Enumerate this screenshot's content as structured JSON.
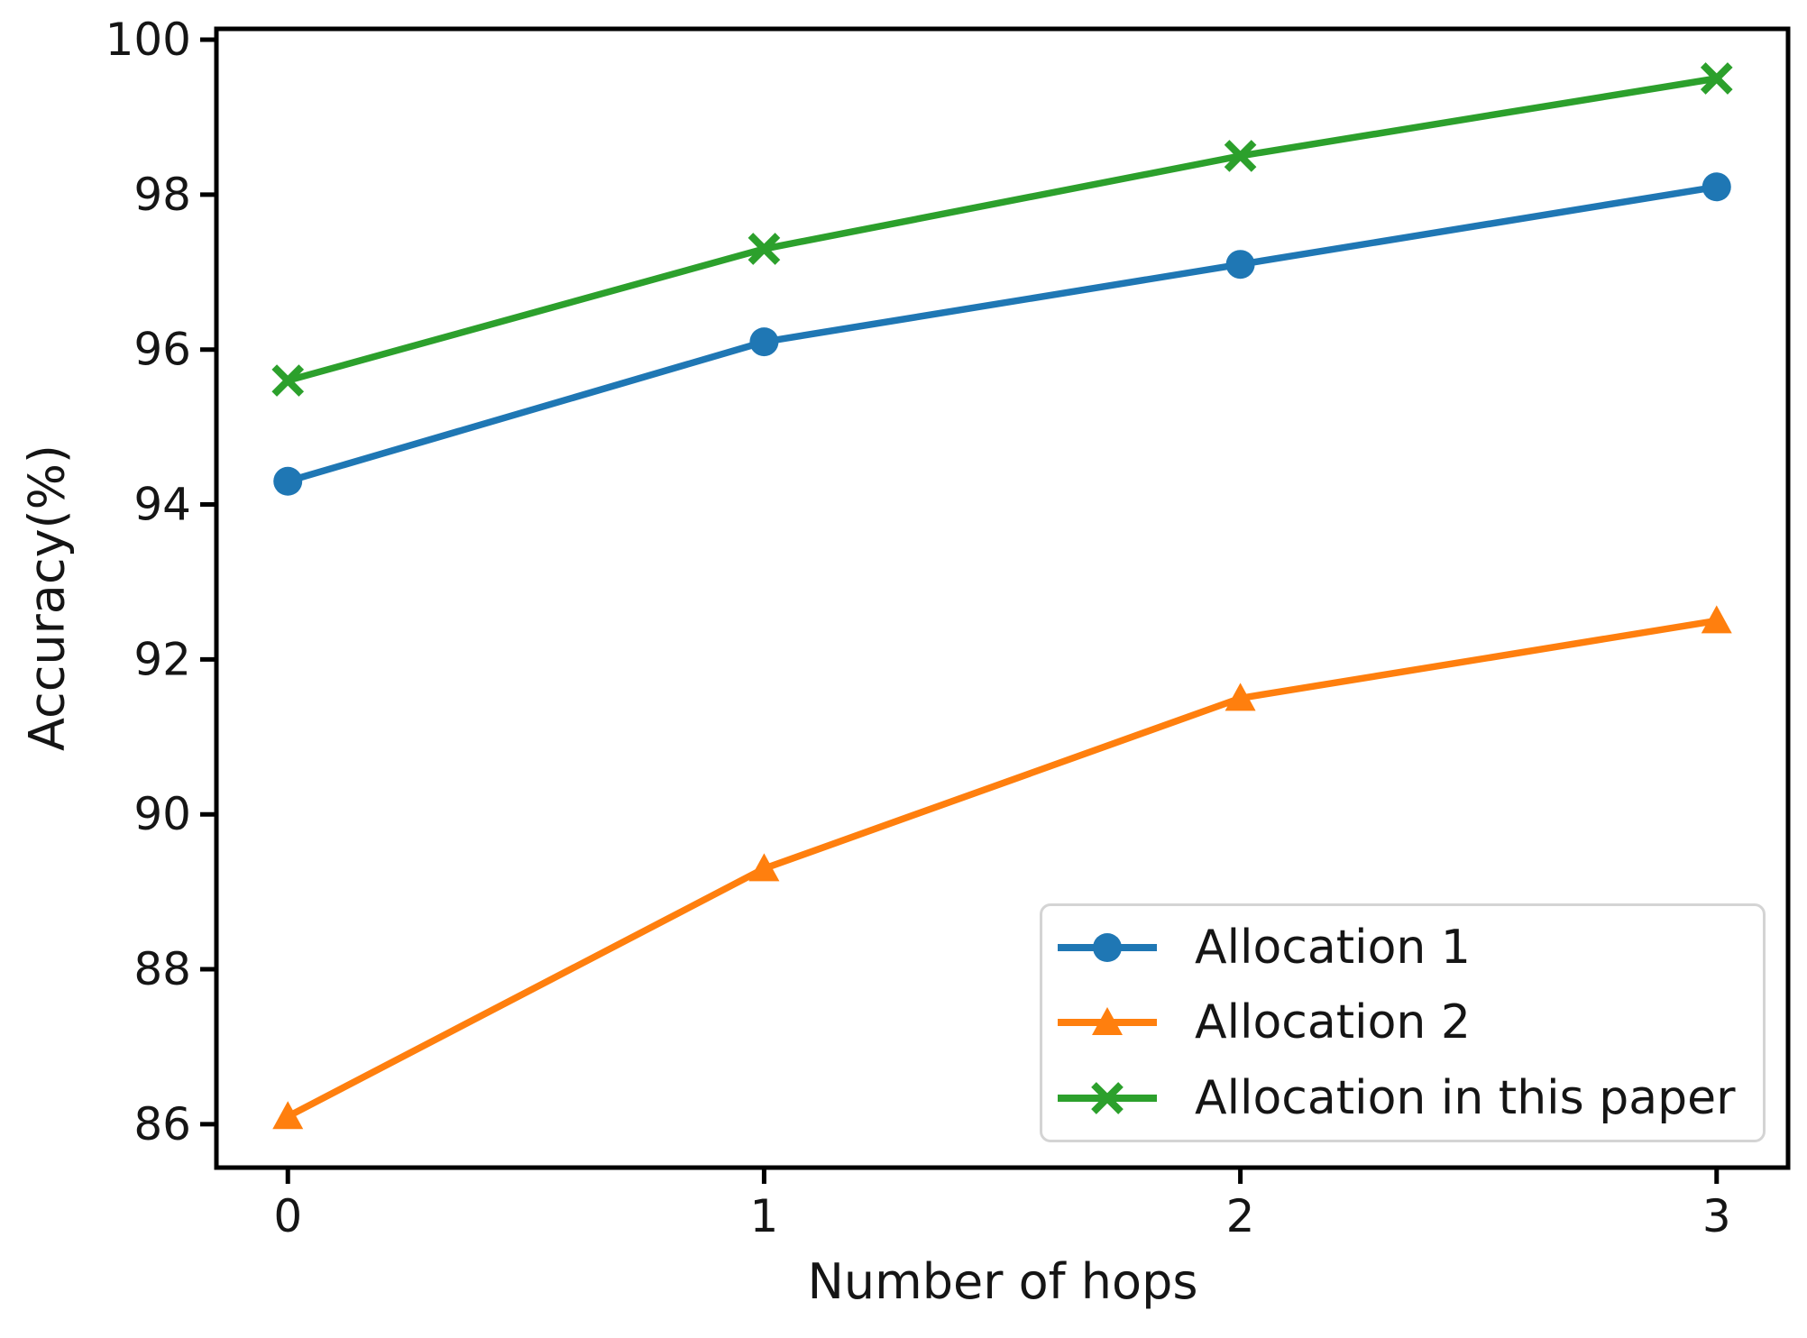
{
  "chart_data": {
    "type": "line",
    "title": "",
    "xlabel": "Number of hops",
    "ylabel": "Accuracy(%)",
    "x": [
      0,
      1,
      2,
      3
    ],
    "series": [
      {
        "name": "Allocation 1",
        "color": "#1f77b4",
        "marker": "circle",
        "values": [
          94.3,
          96.1,
          97.1,
          98.1
        ]
      },
      {
        "name": "Allocation 2",
        "color": "#ff7f0e",
        "marker": "triangle",
        "values": [
          86.1,
          89.3,
          91.5,
          92.5
        ]
      },
      {
        "name": "Allocation in this paper",
        "color": "#2ca02c",
        "marker": "x",
        "values": [
          95.6,
          97.3,
          98.5,
          99.5
        ]
      }
    ],
    "xticks": [
      0,
      1,
      2,
      3
    ],
    "yticks": [
      86,
      88,
      90,
      92,
      94,
      96,
      98,
      100
    ],
    "xlim": [
      -0.15,
      3.15
    ],
    "ylim": [
      85.44,
      100.14
    ],
    "grid": false,
    "legend_position": "lower right",
    "axis_color": "#000000",
    "text_color": "#151515"
  }
}
